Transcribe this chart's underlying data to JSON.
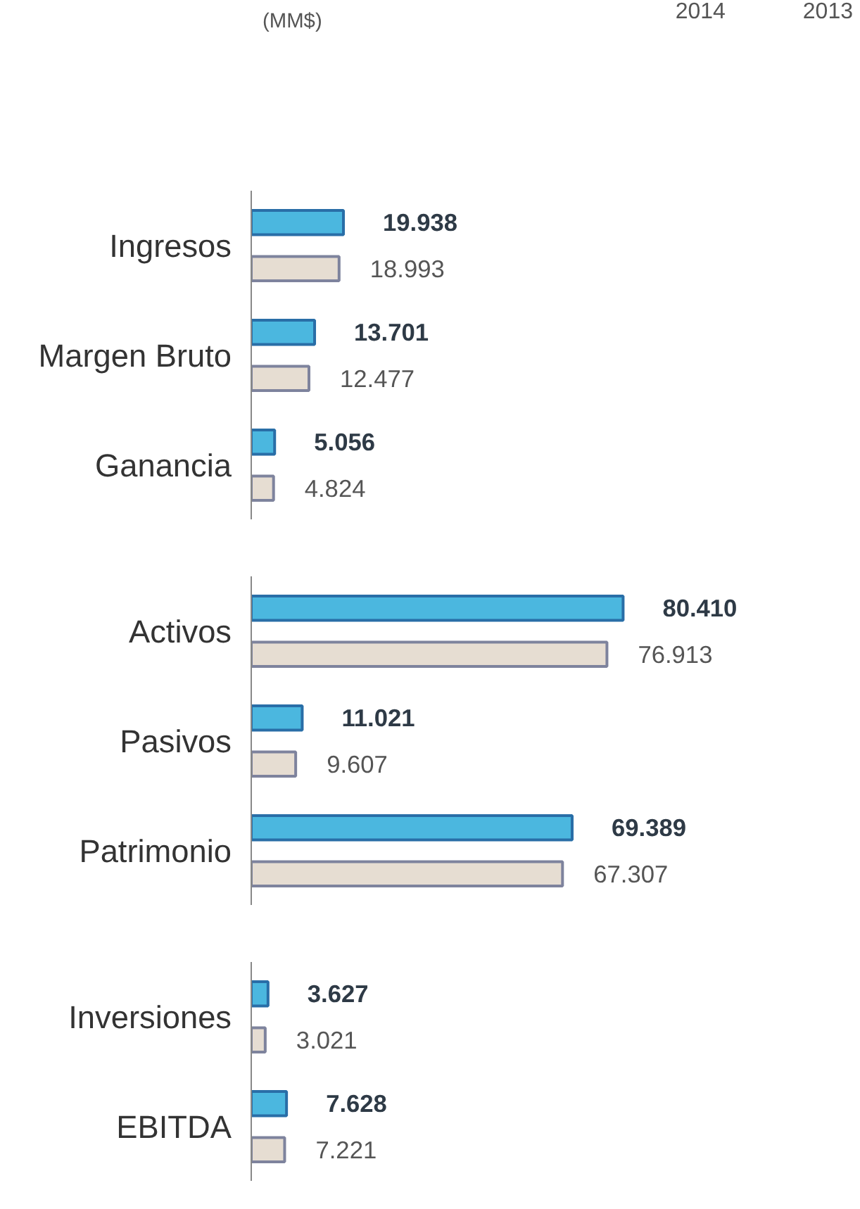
{
  "chart_data": [
    {
      "type": "bar",
      "orientation": "horizontal",
      "title": "(MM$)",
      "categories": [
        "Ingresos",
        "Margen Bruto",
        "Ganancia"
      ],
      "tick_labels": "y",
      "legend": "top right",
      "grid": false,
      "series": [
        {
          "name": "2014",
          "color": "#4bb7df",
          "values": [
            19938,
            13701,
            5056
          ],
          "value_labels": [
            "19.938",
            "13.701",
            "5.056"
          ]
        },
        {
          "name": "2013",
          "color": "#e6ddd2",
          "values": [
            18993,
            12477,
            4824
          ],
          "value_labels": [
            "18.993",
            "12.477",
            "4.824"
          ]
        }
      ]
    },
    {
      "type": "bar",
      "orientation": "horizontal",
      "categories": [
        "Activos",
        "Pasivos",
        "Patrimonio"
      ],
      "tick_labels": "y",
      "grid": false,
      "series": [
        {
          "color": "#4bb7df",
          "values": [
            80410,
            11021,
            69389
          ],
          "value_labels": [
            "80.410",
            "11.021",
            "69.389"
          ]
        },
        {
          "color": "#e6ddd2",
          "values": [
            76913,
            9607,
            67307
          ],
          "value_labels": [
            "76.913",
            "9.607",
            "67.307"
          ]
        }
      ]
    },
    {
      "type": "bar",
      "orientation": "horizontal",
      "categories": [
        "Inversiones",
        "EBITDA"
      ],
      "tick_labels": "y",
      "grid": false,
      "series": [
        {
          "color": "#4bb7df",
          "values": [
            3627,
            7628
          ],
          "value_labels": [
            "3.627",
            "7.628"
          ]
        },
        {
          "color": "#e6ddd2",
          "values": [
            3021,
            7221
          ],
          "value_labels": [
            "3.021",
            "7.221"
          ]
        }
      ]
    }
  ]
}
